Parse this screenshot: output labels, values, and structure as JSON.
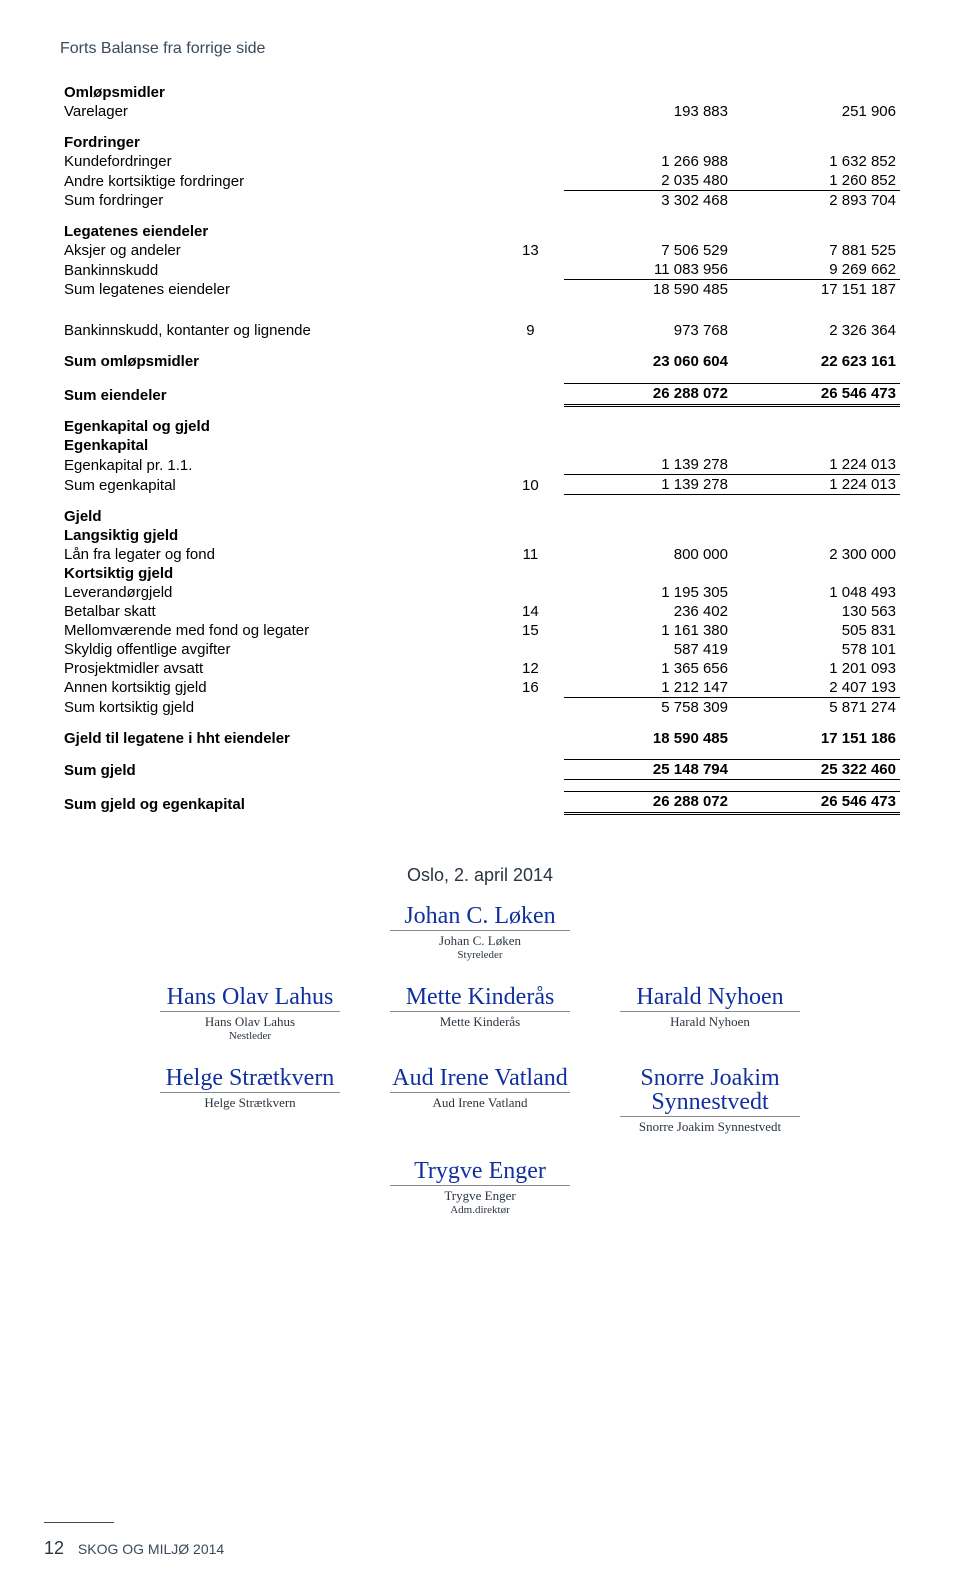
{
  "header_note": "Forts Balanse fra forrige side",
  "sections": {
    "omlopsmidler_title": "Omløpsmidler",
    "fordringer_title": "Fordringer",
    "legatenes_title": "Legatenes eiendeler",
    "egenkapital_title": "Egenkapital og gjeld",
    "egenkapital_sub": "Egenkapital",
    "gjeld_title": "Gjeld",
    "lang_gjeld_title": "Langsiktig gjeld",
    "kort_gjeld_title": "Kortsiktig gjeld"
  },
  "rows": {
    "varelager": {
      "label": "Varelager",
      "n": "",
      "c1": "193 883",
      "c2": "251 906"
    },
    "kundeford": {
      "label": "Kundefordringer",
      "n": "",
      "c1": "1 266 988",
      "c2": "1 632 852"
    },
    "andre_kort": {
      "label": "Andre kortsiktige fordringer",
      "n": "",
      "c1": "2 035 480",
      "c2": "1 260 852"
    },
    "sum_ford": {
      "label": "Sum fordringer",
      "n": "",
      "c1": "3 302 468",
      "c2": "2 893 704"
    },
    "aksjer": {
      "label": "Aksjer og andeler",
      "n": "13",
      "c1": "7 506 529",
      "c2": "7 881 525"
    },
    "bankinnskudd": {
      "label": "Bankinnskudd",
      "n": "",
      "c1": "11 083 956",
      "c2": "9 269 662"
    },
    "sum_legat": {
      "label": "Sum legatenes eiendeler",
      "n": "",
      "c1": "18 590 485",
      "c2": "17 151 187"
    },
    "bank_kont": {
      "label": "Bankinnskudd, kontanter og lignende",
      "n": "9",
      "c1": "973 768",
      "c2": "2 326 364"
    },
    "sum_omlop": {
      "label": "Sum omløpsmidler",
      "n": "",
      "c1": "23 060 604",
      "c2": "22 623 161"
    },
    "sum_eiendeler": {
      "label": "Sum eiendeler",
      "n": "",
      "c1": "26 288 072",
      "c2": "26 546 473"
    },
    "egen_pr": {
      "label": "Egenkapital pr. 1.1.",
      "n": "",
      "c1": "1 139 278",
      "c2": "1 224 013"
    },
    "sum_egen": {
      "label": "Sum egenkapital",
      "n": "10",
      "c1": "1 139 278",
      "c2": "1 224 013"
    },
    "laan": {
      "label": "Lån fra legater og fond",
      "n": "11",
      "c1": "800 000",
      "c2": "2 300 000"
    },
    "lev": {
      "label": "Leverandørgjeld",
      "n": "",
      "c1": "1 195 305",
      "c2": "1 048 493"
    },
    "skatt": {
      "label": "Betalbar skatt",
      "n": "14",
      "c1": "236 402",
      "c2": "130 563"
    },
    "mellom": {
      "label": "Mellomværende med fond og legater",
      "n": "15",
      "c1": "1 161 380",
      "c2": "505 831"
    },
    "avgift": {
      "label": "Skyldig offentlige avgifter",
      "n": "",
      "c1": "587 419",
      "c2": "578 101"
    },
    "prosjekt": {
      "label": "Prosjektmidler avsatt",
      "n": "12",
      "c1": "1 365 656",
      "c2": "1 201 093"
    },
    "annen_kort": {
      "label": "Annen kortsiktig gjeld",
      "n": "16",
      "c1": "1 212 147",
      "c2": "2 407 193"
    },
    "sum_kort": {
      "label": "Sum kortsiktig gjeld",
      "n": "",
      "c1": "5 758 309",
      "c2": "5 871 274"
    },
    "gjeld_legat": {
      "label": "Gjeld til legatene i hht eiendeler",
      "n": "",
      "c1": "18 590 485",
      "c2": "17 151 186"
    },
    "sum_gjeld": {
      "label": "Sum gjeld",
      "n": "",
      "c1": "25 148 794",
      "c2": "25 322 460"
    },
    "sum_gjeld_egen": {
      "label": "Sum gjeld og egenkapital",
      "n": "",
      "c1": "26 288 072",
      "c2": "26 546 473"
    }
  },
  "signatures": {
    "date": "Oslo, 2. april 2014",
    "top": {
      "name": "Johan C. Løken",
      "role": "Styreleder"
    },
    "row2": [
      {
        "name": "Hans Olav Lahus",
        "role": "Nestleder"
      },
      {
        "name": "Mette Kinderås",
        "role": ""
      },
      {
        "name": "Harald Nyhoen",
        "role": ""
      }
    ],
    "row3": [
      {
        "name": "Helge Strætkvern",
        "role": ""
      },
      {
        "name": "Aud Irene Vatland",
        "role": ""
      },
      {
        "name": "Snorre Joakim Synnestvedt",
        "role": ""
      }
    ],
    "bottom": {
      "name": "Trygve Enger",
      "role": "Adm.direktør"
    }
  },
  "footer": {
    "page": "12",
    "text": "SKOG OG MILJØ 2014"
  }
}
